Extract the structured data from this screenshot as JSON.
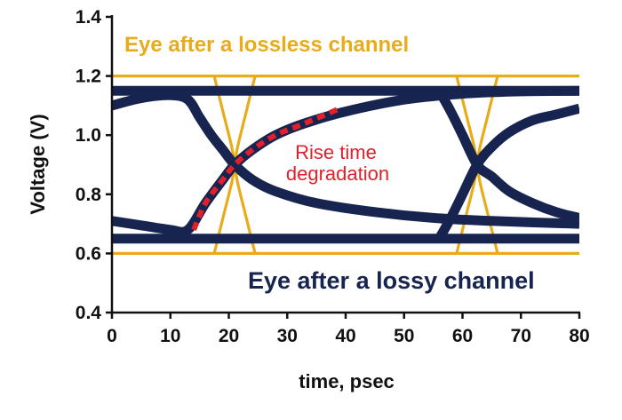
{
  "chart_data": {
    "type": "line",
    "xlabel": "time, psec",
    "ylabel": "Voltage (V)",
    "xlim": [
      0,
      80
    ],
    "ylim": [
      0.4,
      1.4
    ],
    "xticks": [
      0,
      10,
      20,
      30,
      40,
      50,
      60,
      70,
      80
    ],
    "yticks": [
      0.4,
      0.6,
      0.8,
      1.0,
      1.2,
      1.4
    ],
    "xtick_labels": [
      "0",
      "10",
      "20",
      "30",
      "40",
      "50",
      "60",
      "70",
      "80"
    ],
    "ytick_labels": [
      "0.4",
      "0.6",
      "0.8",
      "1.0",
      "1.2",
      "1.4"
    ],
    "grid": false,
    "colors": {
      "lossless": "#e8ac1a",
      "lossy": "#17244f",
      "highlight": "#e0202a",
      "axis": "#111111"
    },
    "series": [
      {
        "group": "lossless",
        "points": [
          [
            0,
            1.2
          ],
          [
            80,
            1.2
          ]
        ]
      },
      {
        "group": "lossless",
        "points": [
          [
            0,
            0.6
          ],
          [
            80,
            0.6
          ]
        ]
      },
      {
        "group": "lossless",
        "points": [
          [
            17.5,
            1.2
          ],
          [
            19,
            1.08
          ],
          [
            20.5,
            0.96
          ],
          [
            21,
            0.9
          ],
          [
            21.5,
            0.84
          ],
          [
            23,
            0.72
          ],
          [
            24.5,
            0.6
          ]
        ]
      },
      {
        "group": "lossless",
        "points": [
          [
            24.5,
            1.2
          ],
          [
            23,
            1.08
          ],
          [
            21.5,
            0.96
          ],
          [
            21,
            0.9
          ],
          [
            20.5,
            0.84
          ],
          [
            19,
            0.72
          ],
          [
            17.5,
            0.6
          ]
        ]
      },
      {
        "group": "lossless",
        "points": [
          [
            59,
            1.2
          ],
          [
            60.5,
            1.08
          ],
          [
            62,
            0.96
          ],
          [
            62.5,
            0.9
          ],
          [
            63,
            0.84
          ],
          [
            64.5,
            0.72
          ],
          [
            66,
            0.6
          ]
        ]
      },
      {
        "group": "lossless",
        "points": [
          [
            66,
            1.2
          ],
          [
            64.5,
            1.08
          ],
          [
            63,
            0.96
          ],
          [
            62.5,
            0.9
          ],
          [
            62,
            0.84
          ],
          [
            60.5,
            0.72
          ],
          [
            59,
            0.6
          ]
        ]
      },
      {
        "group": "lossy",
        "points": [
          [
            0,
            1.15
          ],
          [
            80,
            1.15
          ]
        ]
      },
      {
        "group": "lossy",
        "points": [
          [
            0,
            0.65
          ],
          [
            80,
            0.65
          ]
        ]
      },
      {
        "group": "lossy",
        "points": [
          [
            0,
            1.1
          ],
          [
            5,
            1.125
          ],
          [
            10,
            1.135
          ],
          [
            13,
            1.12
          ],
          [
            15,
            1.06
          ],
          [
            17,
            1.0
          ],
          [
            19,
            0.95
          ],
          [
            21,
            0.9
          ],
          [
            24,
            0.85
          ],
          [
            28,
            0.81
          ],
          [
            35,
            0.77
          ],
          [
            45,
            0.74
          ],
          [
            55,
            0.72
          ],
          [
            65,
            0.71
          ],
          [
            80,
            0.7
          ]
        ]
      },
      {
        "group": "lossy",
        "points": [
          [
            0,
            0.71
          ],
          [
            5,
            0.695
          ],
          [
            10,
            0.68
          ],
          [
            13,
            0.68
          ],
          [
            16,
            0.77
          ],
          [
            19,
            0.85
          ],
          [
            21,
            0.9
          ],
          [
            24,
            0.95
          ],
          [
            28,
            1.0
          ],
          [
            33,
            1.04
          ],
          [
            40,
            1.08
          ],
          [
            50,
            1.12
          ],
          [
            60,
            1.14
          ],
          [
            70,
            1.148
          ],
          [
            80,
            1.15
          ]
        ]
      },
      {
        "group": "lossy",
        "points": [
          [
            56,
            1.15
          ],
          [
            58,
            1.08
          ],
          [
            60,
            1.0
          ],
          [
            62.5,
            0.9
          ],
          [
            65,
            0.86
          ],
          [
            68,
            0.81
          ],
          [
            72,
            0.77
          ],
          [
            76,
            0.74
          ],
          [
            80,
            0.72
          ]
        ]
      },
      {
        "group": "lossy",
        "points": [
          [
            56,
            0.65
          ],
          [
            58,
            0.72
          ],
          [
            60,
            0.8
          ],
          [
            62.5,
            0.9
          ],
          [
            65,
            0.96
          ],
          [
            68,
            1.01
          ],
          [
            72,
            1.05
          ],
          [
            76,
            1.07
          ],
          [
            80,
            1.09
          ]
        ]
      },
      {
        "group": "highlight",
        "points": [
          [
            14,
            0.68
          ],
          [
            16,
            0.77
          ],
          [
            19,
            0.85
          ],
          [
            21,
            0.9
          ],
          [
            24,
            0.95
          ],
          [
            28,
            1.0
          ],
          [
            33,
            1.04
          ],
          [
            39,
            1.09
          ]
        ]
      }
    ],
    "annotations": {
      "lossless_label": "Eye after a lossless channel",
      "lossy_label": "Eye after a lossy channel",
      "rise_time_line1": "Rise time",
      "rise_time_line2": "degradation"
    }
  }
}
